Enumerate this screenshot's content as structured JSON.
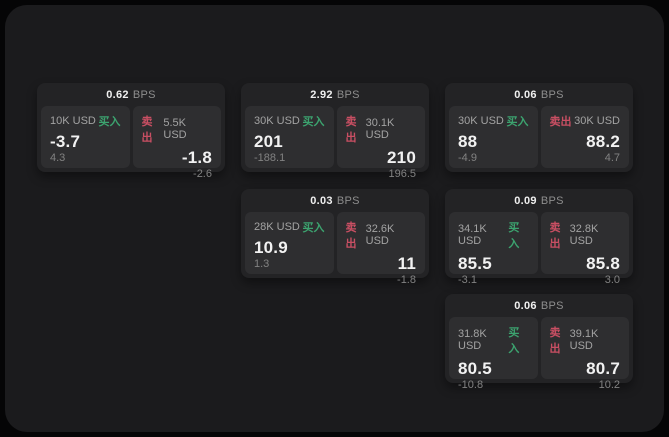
{
  "theme": {
    "page_bg": "#050506",
    "panel_bg": "#1b1b1d",
    "card_bg": "#232325",
    "tile_bg": "#2e2e30",
    "text_primary": "#f2f2f2",
    "text_secondary": "#a3a3a3",
    "text_muted": "#828282",
    "buy_color": "#3ca36f",
    "sell_color": "#c94f63"
  },
  "labels": {
    "buy": "买入",
    "sell": "卖出",
    "bps_suffix": "BPS"
  },
  "cards": [
    {
      "row": 1,
      "col": 1,
      "bps": "0.62",
      "buy": {
        "size": "10K USD",
        "price": "-3.7",
        "delta": "4.3"
      },
      "sell": {
        "size": "5.5K USD",
        "price": "-1.8",
        "delta": "-2.6"
      }
    },
    {
      "row": 1,
      "col": 2,
      "bps": "2.92",
      "buy": {
        "size": "30K USD",
        "price": "201",
        "delta": "-188.1"
      },
      "sell": {
        "size": "30.1K USD",
        "price": "210",
        "delta": "196.5"
      }
    },
    {
      "row": 1,
      "col": 3,
      "bps": "0.06",
      "buy": {
        "size": "30K USD",
        "price": "88",
        "delta": "-4.9"
      },
      "sell": {
        "size": "30K USD",
        "price": "88.2",
        "delta": "4.7"
      }
    },
    {
      "row": 2,
      "col": 2,
      "bps": "0.03",
      "buy": {
        "size": "28K USD",
        "price": "10.9",
        "delta": "1.3"
      },
      "sell": {
        "size": "32.6K USD",
        "price": "11",
        "delta": "-1.8"
      }
    },
    {
      "row": 2,
      "col": 3,
      "bps": "0.09",
      "buy": {
        "size": "34.1K USD",
        "price": "85.5",
        "delta": "-3.1"
      },
      "sell": {
        "size": "32.8K USD",
        "price": "85.8",
        "delta": "3.0"
      }
    },
    {
      "row": 3,
      "col": 3,
      "bps": "0.06",
      "buy": {
        "size": "31.8K USD",
        "price": "80.5",
        "delta": "-10.8"
      },
      "sell": {
        "size": "39.1K USD",
        "price": "80.7",
        "delta": "10.2"
      }
    }
  ]
}
